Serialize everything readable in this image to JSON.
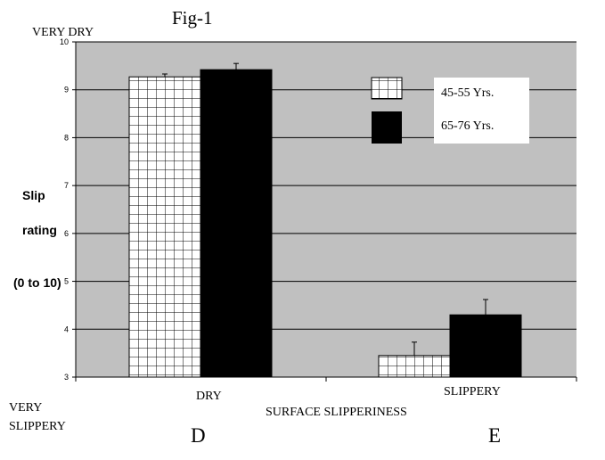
{
  "fig_title": "Fig-1",
  "top_label": "VERY DRY",
  "bottom_label_lines": [
    "VERY",
    "SLIPPERY"
  ],
  "ylabel_lines": [
    "Slip",
    "rating",
    "(0 to 10)"
  ],
  "xlabel": "SURFACE SLIPPERINESS",
  "panel_letters": [
    "D",
    "E"
  ],
  "chart_data": {
    "type": "bar",
    "categories": [
      "DRY",
      "SLIPPERY"
    ],
    "ylim": [
      3,
      10
    ],
    "yticks": [
      3,
      4,
      5,
      6,
      7,
      8,
      9,
      10
    ],
    "grid": true,
    "legend_position": "top-right",
    "series": [
      {
        "name": "45-55 Yrs.",
        "values": [
          9.27,
          3.45
        ],
        "errors": [
          0.06,
          0.28
        ],
        "pattern": "grid",
        "color": "#ffffff"
      },
      {
        "name": "65-76 Yrs.",
        "values": [
          9.42,
          4.3
        ],
        "errors": [
          0.13,
          0.32
        ],
        "pattern": "solid",
        "color": "#000000"
      }
    ]
  },
  "colors": {
    "plot_background": "#c0c0c0",
    "gridline": "#000000"
  }
}
